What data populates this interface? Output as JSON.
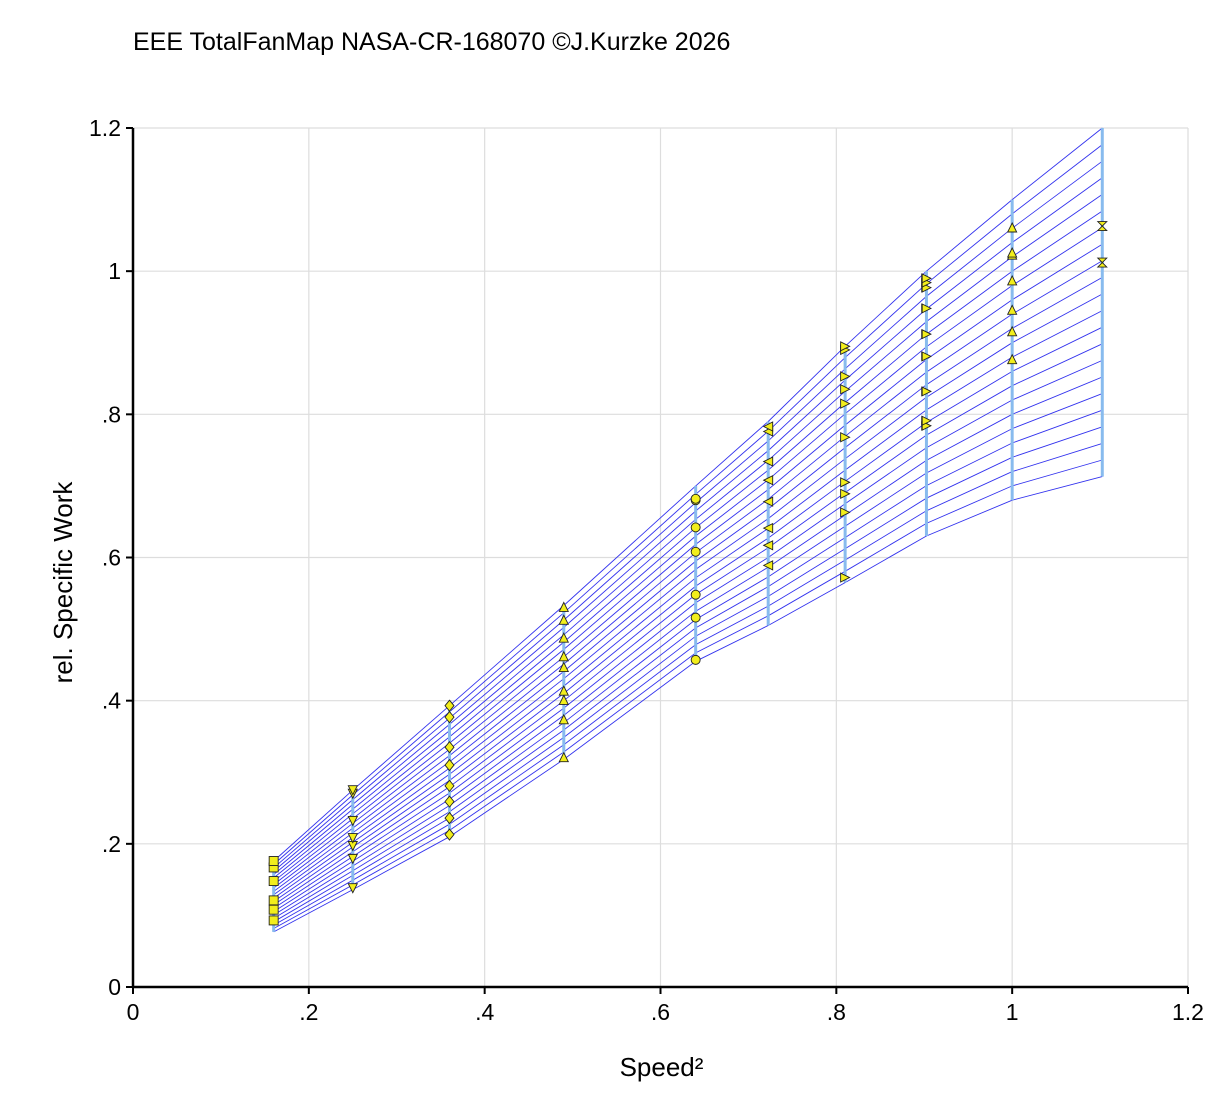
{
  "chart_data": {
    "type": "line",
    "title": "EEE TotalFanMap NASA-CR-168070 ©J.Kurzke 2026",
    "xlabel": "Speed²",
    "ylabel": "rel. Specific Work",
    "xlim": [
      0,
      1.2
    ],
    "ylim": [
      0,
      1.2
    ],
    "x_ticks": [
      "0",
      ".2",
      ".4",
      ".6",
      ".8",
      "1",
      "1.2"
    ],
    "y_ticks": [
      "0",
      ".2",
      ".4",
      ".6",
      ".8",
      "1",
      "1.2"
    ],
    "x_tick_values": [
      0,
      0.2,
      0.4,
      0.6,
      0.8,
      1.0,
      1.2
    ],
    "y_tick_values": [
      0,
      0.2,
      0.4,
      0.6,
      0.8,
      1.0,
      1.2
    ],
    "grid": true,
    "line_color": "#3333ee",
    "speed_line_color": "#88bbee",
    "marker_color": "#f2ee1c",
    "speed_lines": [
      {
        "x": 0.16,
        "y_low": 0.077,
        "y_high": 0.176,
        "marker": "square",
        "points": [
          0.093,
          0.108,
          0.121,
          0.148,
          0.167,
          0.176
        ]
      },
      {
        "x": 0.25,
        "y_low": 0.136,
        "y_high": 0.275,
        "marker": "triangle-down",
        "points": [
          0.138,
          0.179,
          0.197,
          0.208,
          0.232,
          0.27,
          0.275
        ]
      },
      {
        "x": 0.36,
        "y_low": 0.21,
        "y_high": 0.393,
        "marker": "diamond",
        "points": [
          0.213,
          0.236,
          0.259,
          0.281,
          0.31,
          0.335,
          0.377,
          0.393
        ]
      },
      {
        "x": 0.49,
        "y_low": 0.318,
        "y_high": 0.533,
        "marker": "triangle-up",
        "points": [
          0.321,
          0.374,
          0.401,
          0.414,
          0.447,
          0.462,
          0.488,
          0.513,
          0.531
        ]
      },
      {
        "x": 0.64,
        "y_low": 0.455,
        "y_high": 0.7,
        "marker": "circle",
        "points": [
          0.457,
          0.516,
          0.548,
          0.608,
          0.642,
          0.68,
          0.682
        ]
      },
      {
        "x": 0.7225,
        "y_low": 0.505,
        "y_high": 0.79,
        "marker": "triangle-left",
        "points": [
          0.589,
          0.617,
          0.641,
          0.678,
          0.708,
          0.734,
          0.776,
          0.783
        ]
      },
      {
        "x": 0.81,
        "y_low": 0.565,
        "y_high": 0.895,
        "marker": "triangle-right",
        "points": [
          0.572,
          0.663,
          0.689,
          0.705,
          0.768,
          0.815,
          0.835,
          0.853,
          0.89,
          0.895
        ]
      },
      {
        "x": 0.9025,
        "y_low": 0.63,
        "y_high": 1.0,
        "marker": "bowtie",
        "points": [
          0.784,
          0.791,
          0.832,
          0.881,
          0.912,
          0.948,
          0.977,
          0.984,
          0.99
        ]
      },
      {
        "x": 1.0,
        "y_low": 0.68,
        "y_high": 1.1,
        "marker": "triangle-up",
        "points": [
          0.877,
          0.916,
          0.946,
          0.987,
          1.023,
          1.026,
          1.061
        ]
      },
      {
        "x": 1.1025,
        "y_low": 0.713,
        "y_high": 1.2,
        "marker": "hourglass",
        "points": [
          1.012,
          1.063
        ]
      }
    ],
    "beta_line_count": 22
  }
}
